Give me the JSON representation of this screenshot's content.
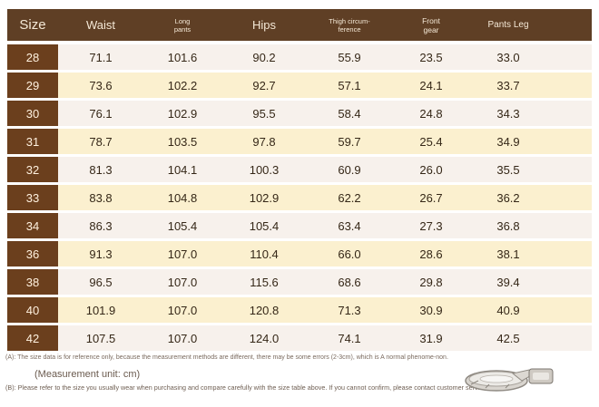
{
  "header": {
    "size": "Size",
    "waist": "Waist",
    "long_pants_1": "Long",
    "long_pants_2": "pants",
    "hips": "Hips",
    "thigh_1": "Thigh circum-",
    "thigh_2": "ference",
    "front_1": "Front",
    "front_2": "gear",
    "pants_leg": "Pants Leg"
  },
  "rows": [
    {
      "size": "28",
      "waist": "71.1",
      "long": "101.6",
      "hips": "90.2",
      "thigh": "55.9",
      "front": "23.5",
      "leg": "33.0"
    },
    {
      "size": "29",
      "waist": "73.6",
      "long": "102.2",
      "hips": "92.7",
      "thigh": "57.1",
      "front": "24.1",
      "leg": "33.7"
    },
    {
      "size": "30",
      "waist": "76.1",
      "long": "102.9",
      "hips": "95.5",
      "thigh": "58.4",
      "front": "24.8",
      "leg": "34.3"
    },
    {
      "size": "31",
      "waist": "78.7",
      "long": "103.5",
      "hips": "97.8",
      "thigh": "59.7",
      "front": "25.4",
      "leg": "34.9"
    },
    {
      "size": "32",
      "waist": "81.3",
      "long": "104.1",
      "hips": "100.3",
      "thigh": "60.9",
      "front": "26.0",
      "leg": "35.5"
    },
    {
      "size": "33",
      "waist": "83.8",
      "long": "104.8",
      "hips": "102.9",
      "thigh": "62.2",
      "front": "26.7",
      "leg": "36.2"
    },
    {
      "size": "34",
      "waist": "86.3",
      "long": "105.4",
      "hips": "105.4",
      "thigh": "63.4",
      "front": "27.3",
      "leg": "36.8"
    },
    {
      "size": "36",
      "waist": "91.3",
      "long": "107.0",
      "hips": "110.4",
      "thigh": "66.0",
      "front": "28.6",
      "leg": "38.1"
    },
    {
      "size": "38",
      "waist": "96.5",
      "long": "107.0",
      "hips": "115.6",
      "thigh": "68.6",
      "front": "29.8",
      "leg": "39.4"
    },
    {
      "size": "40",
      "waist": "101.9",
      "long": "107.0",
      "hips": "120.8",
      "thigh": "71.3",
      "front": "30.9",
      "leg": "40.9"
    },
    {
      "size": "42",
      "waist": "107.5",
      "long": "107.0",
      "hips": "124.0",
      "thigh": "74.1",
      "front": "31.9",
      "leg": "42.5"
    }
  ],
  "notes": {
    "note_a": "(A): The size data is for reference only, because the measurement methods are different, there may be some errors (2-3cm), which is A normal phenome-non.",
    "unit": "(Measurement unit: cm)",
    "note_b": "(B): Please refer to the size you usually wear when purchasing and compare carefully with the size table above. If you cannot confirm, please contact customer service."
  },
  "colors": {
    "header_bg": "#5f3f25",
    "size_cell_bg": "#6b3f1d",
    "row_light": "#f7f1ec",
    "row_cream": "#fbf0cf"
  },
  "icons": [
    "measuring-tape-icon"
  ]
}
